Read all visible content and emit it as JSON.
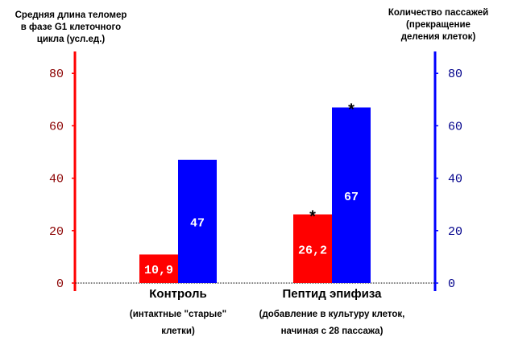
{
  "chart_data": {
    "type": "bar",
    "left_axis_title": [
      "Средняя длина теломер",
      "в фазе  G1 клеточного",
      "цикла (усл.ед.)"
    ],
    "right_axis_title": [
      "Количество пассажей",
      "(прекращение",
      "деления клеток)"
    ],
    "categories": [
      {
        "label": "Контроль",
        "sublabel": [
          "(интактные  \"старые\"",
          "клетки)"
        ]
      },
      {
        "label": "Пептид эпифиза",
        "sublabel": [
          "(добавление  в культуру клеток,",
          "начиная  с 28 пассажа)"
        ]
      }
    ],
    "series": [
      {
        "axis": "left",
        "color": "#ff0000",
        "values": [
          10.9,
          26.2
        ],
        "labels": [
          "10,9",
          "26,2"
        ],
        "marks": [
          "",
          "*"
        ]
      },
      {
        "axis": "right",
        "color": "#0000ff",
        "values": [
          47,
          67
        ],
        "labels": [
          "47",
          "67"
        ],
        "marks": [
          "",
          "*"
        ]
      }
    ],
    "left_ticks": [
      "0",
      "20",
      "40",
      "60",
      "80"
    ],
    "right_ticks": [
      "0",
      "20",
      "40",
      "60",
      "80"
    ],
    "ylim_left": [
      0,
      88
    ],
    "ylim_right": [
      0,
      88
    ],
    "left_axis_color": "#ff0000",
    "right_axis_color": "#0000ff",
    "left_tick_color": "#8b0000",
    "right_tick_color": "#00008b",
    "grid": false
  }
}
